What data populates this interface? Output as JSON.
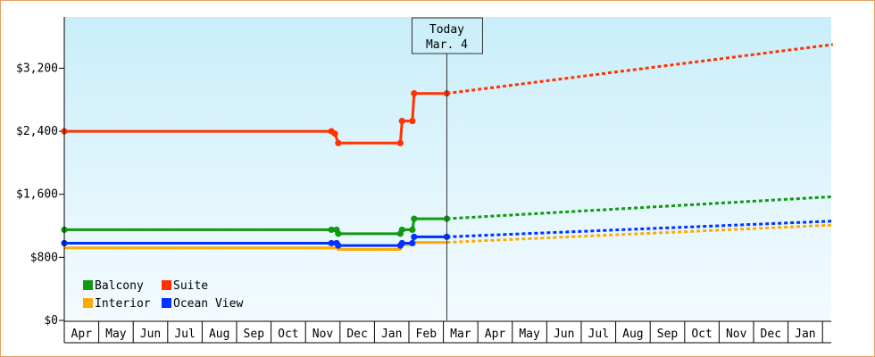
{
  "chart_data": {
    "type": "line",
    "title": "",
    "xlabel": "",
    "ylabel": "",
    "ylim": [
      0,
      3850
    ],
    "y_ticks": [
      0,
      800,
      1600,
      2400,
      3200
    ],
    "y_tick_labels": [
      "$0",
      "$800",
      "$1,600",
      "$2,400",
      "$3,200"
    ],
    "x_months": [
      "Apr",
      "May",
      "Jun",
      "Jul",
      "Aug",
      "Sep",
      "Oct",
      "Nov",
      "Dec",
      "Jan",
      "Feb",
      "Mar",
      "Apr",
      "May",
      "Jun",
      "Jul",
      "Aug",
      "Sep",
      "Oct",
      "Nov",
      "Dec",
      "Jan"
    ],
    "today": {
      "label": "Today",
      "date_label": "Mar. 4",
      "x": 11.1
    },
    "legend": {
      "placement": "bottom-left"
    },
    "series": [
      {
        "name": "Balcony",
        "color": "#119911",
        "historical": [
          [
            0.0,
            1150
          ],
          [
            7.75,
            1150
          ],
          [
            7.9,
            1150
          ],
          [
            7.95,
            1100
          ],
          [
            9.75,
            1100
          ],
          [
            9.8,
            1150
          ],
          [
            10.1,
            1150
          ],
          [
            10.15,
            1290
          ],
          [
            11.1,
            1290
          ]
        ],
        "markers": [
          [
            0.0,
            1150
          ],
          [
            7.75,
            1150
          ],
          [
            7.9,
            1150
          ],
          [
            7.95,
            1100
          ],
          [
            9.75,
            1100
          ],
          [
            9.8,
            1150
          ],
          [
            10.1,
            1150
          ],
          [
            10.15,
            1290
          ],
          [
            11.1,
            1290
          ]
        ],
        "projected": [
          [
            11.1,
            1290
          ],
          [
            22.3,
            1570
          ]
        ]
      },
      {
        "name": "Suite",
        "color": "#ff3300",
        "historical": [
          [
            0.0,
            2400
          ],
          [
            7.75,
            2400
          ],
          [
            7.85,
            2370
          ],
          [
            7.95,
            2250
          ],
          [
            9.75,
            2250
          ],
          [
            9.8,
            2530
          ],
          [
            10.1,
            2530
          ],
          [
            10.15,
            2880
          ],
          [
            11.1,
            2880
          ]
        ],
        "markers": [
          [
            0.0,
            2400
          ],
          [
            7.75,
            2400
          ],
          [
            7.85,
            2370
          ],
          [
            7.95,
            2250
          ],
          [
            9.75,
            2250
          ],
          [
            9.8,
            2530
          ],
          [
            10.1,
            2530
          ],
          [
            10.15,
            2880
          ],
          [
            11.1,
            2880
          ]
        ],
        "projected": [
          [
            11.1,
            2880
          ],
          [
            22.3,
            3500
          ]
        ]
      },
      {
        "name": "Interior",
        "color": "#ffaa00",
        "historical": [
          [
            0.0,
            920
          ],
          [
            7.75,
            920
          ],
          [
            7.9,
            920
          ],
          [
            7.95,
            900
          ],
          [
            9.75,
            900
          ],
          [
            9.8,
            960
          ],
          [
            10.1,
            960
          ],
          [
            10.15,
            990
          ],
          [
            11.1,
            990
          ]
        ],
        "markers": [],
        "projected": [
          [
            11.1,
            990
          ],
          [
            22.3,
            1210
          ]
        ]
      },
      {
        "name": "Ocean View",
        "color": "#0033ff",
        "historical": [
          [
            0.0,
            980
          ],
          [
            7.75,
            980
          ],
          [
            7.9,
            980
          ],
          [
            7.95,
            950
          ],
          [
            9.75,
            950
          ],
          [
            9.8,
            980
          ],
          [
            10.1,
            980
          ],
          [
            10.15,
            1060
          ],
          [
            11.1,
            1060
          ]
        ],
        "markers": [
          [
            0.0,
            980
          ],
          [
            7.75,
            980
          ],
          [
            7.9,
            980
          ],
          [
            7.95,
            950
          ],
          [
            9.75,
            950
          ],
          [
            9.8,
            980
          ],
          [
            10.1,
            980
          ],
          [
            10.15,
            1060
          ],
          [
            11.1,
            1060
          ]
        ],
        "projected": [
          [
            11.1,
            1060
          ],
          [
            22.3,
            1260
          ]
        ]
      }
    ]
  }
}
